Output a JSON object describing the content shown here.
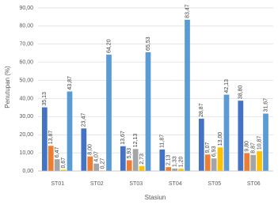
{
  "chart_data": {
    "type": "bar",
    "y_label": "Penutupan (%)",
    "x_label": "Stasiun",
    "categories": [
      "ST01",
      "ST02",
      "ST03",
      "ST04",
      "ST05",
      "ST06"
    ],
    "series": [
      {
        "color": "#4472c4",
        "values": [
          35.13,
          23.47,
          13.67,
          11.87,
          28.87,
          38.8
        ],
        "value_labels": [
          "35,13",
          "23,47",
          "13,67",
          "11,87",
          "28,87",
          "38,80"
        ]
      },
      {
        "color": "#ed7d31",
        "values": [
          13.87,
          8.0,
          5.93,
          2.13,
          9.07,
          9.8
        ],
        "value_labels": [
          "13,87",
          "8,00",
          "5,93",
          "2,13",
          "9,07",
          "9,80"
        ]
      },
      {
        "color": "#a5a5a5",
        "values": [
          6.47,
          4.07,
          12.13,
          1.33,
          6.93,
          8.87
        ],
        "value_labels": [
          "6,47",
          "4,07",
          "12,13",
          "1,33",
          "6,93",
          "8,87"
        ]
      },
      {
        "color": "#ffc000",
        "values": [
          0.67,
          0.27,
          2.73,
          1.2,
          13.0,
          10.87
        ],
        "value_labels": [
          "0,67",
          "0,27",
          "2,73",
          "1,20",
          "13,00",
          "10,87"
        ]
      },
      {
        "color": "#5b9bd5",
        "values": [
          43.87,
          64.2,
          65.53,
          83.47,
          42.13,
          31.67
        ],
        "value_labels": [
          "43,87",
          "64,20",
          "65,53",
          "83,47",
          "42,13",
          "31,67"
        ]
      }
    ],
    "ylim": [
      0,
      90
    ],
    "yticks": [
      {
        "value": 0,
        "label": "0,00"
      },
      {
        "value": 10,
        "label": "10,00"
      },
      {
        "value": 20,
        "label": "20,00"
      },
      {
        "value": 30,
        "label": "30,00"
      },
      {
        "value": 40,
        "label": "40,00"
      },
      {
        "value": 50,
        "label": "50,00"
      },
      {
        "value": 60,
        "label": "60,00"
      },
      {
        "value": 70,
        "label": "70,00"
      },
      {
        "value": 80,
        "label": "80,00"
      },
      {
        "value": 90,
        "label": "90,00"
      }
    ],
    "grid": true
  }
}
